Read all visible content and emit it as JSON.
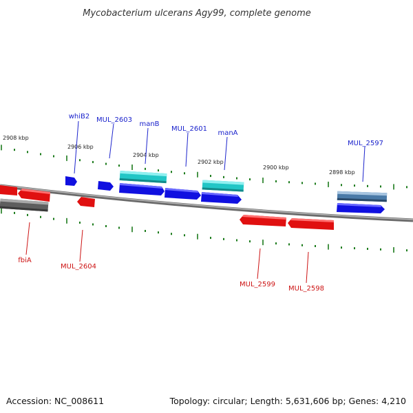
{
  "title": "Mycobacterium ulcerans Agy99, complete genome",
  "footer": {
    "accession": "Accession: NC_008611",
    "summary": "Topology: circular; Length: 5,631,606 bp; Genes: 4,210"
  },
  "scale_labels": [
    "2908 kbp",
    "2906 kbp",
    "2904 kbp",
    "2902 kbp",
    "2900 kbp",
    "2898 kbp"
  ],
  "gene_labels_top": [
    "whiB2",
    "MUL_2603",
    "manB",
    "MUL_2601",
    "manA",
    "MUL_2597"
  ],
  "gene_labels_bottom": [
    "fbiA",
    "MUL_2604",
    "MUL_2599",
    "MUL_2598"
  ],
  "colors": {
    "forward_cds": "#1010e0",
    "reverse_cds": "#e01010",
    "feature_cyan": "#20c8c8",
    "feature_steel": "#4a7aa8",
    "feature_gray": "#6a6a6a",
    "backbone": "#888888",
    "ticks": "#1a7a1a",
    "label_blue": "#1a22cc",
    "label_red": "#cc1111"
  }
}
